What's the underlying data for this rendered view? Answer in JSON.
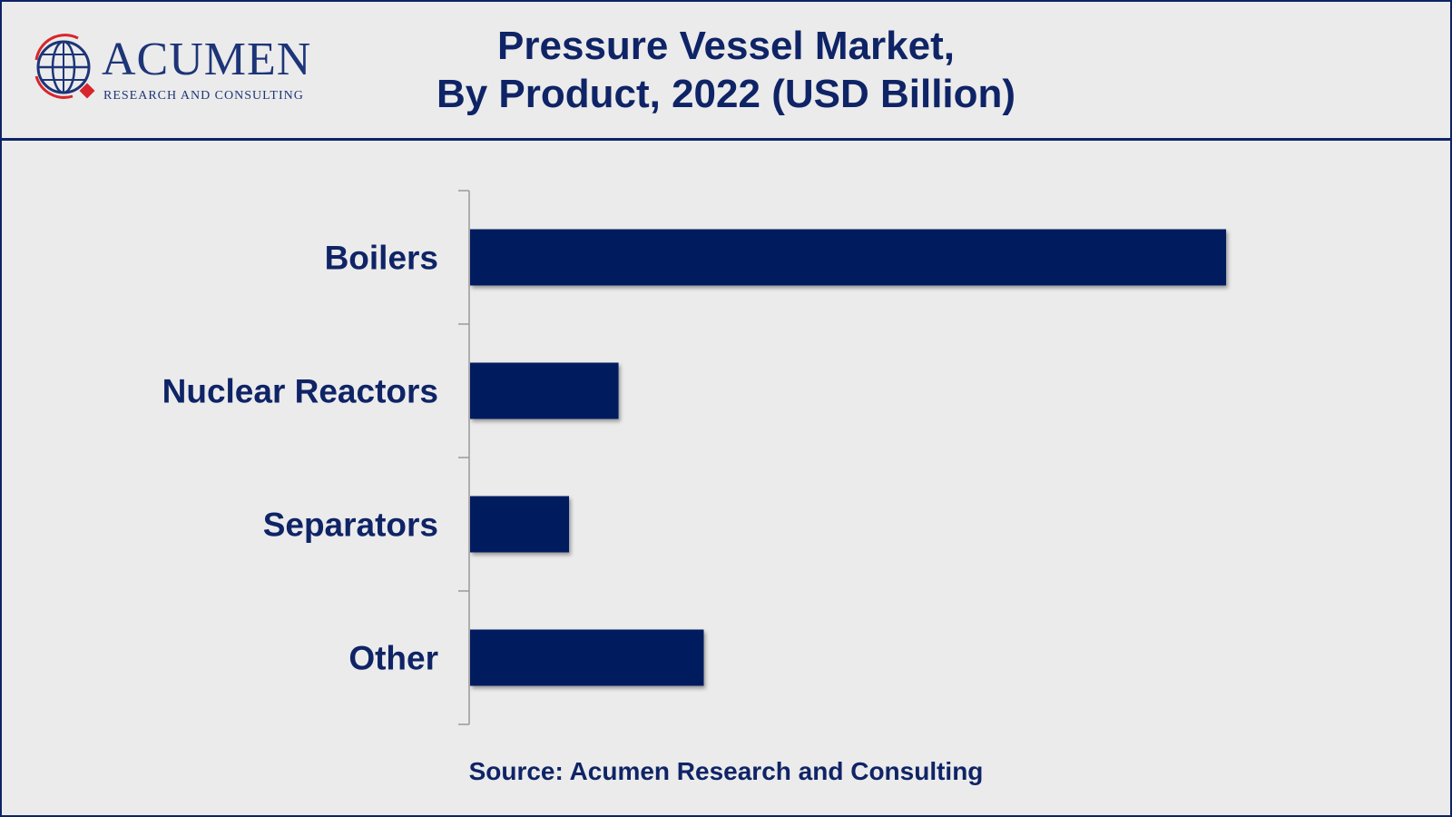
{
  "logo": {
    "wordmark": "ACUMEN",
    "tagline": "RESEARCH AND CONSULTING",
    "icon": "globe-icon"
  },
  "title_line1": "Pressure Vessel Market,",
  "title_line2": "By Product, 2022 (USD Billion)",
  "source": "Source: Acumen Research and Consulting",
  "colors": {
    "bar": "#001e5e",
    "text": "#0f2466",
    "background": "#ebebeb",
    "border": "#0f2466"
  },
  "chart_data": {
    "type": "bar",
    "orientation": "horizontal",
    "title": "Pressure Vessel Market, By Product, 2022 (USD Billion)",
    "categories": [
      "Boilers",
      "Nuclear Reactors",
      "Separators",
      "Other"
    ],
    "values": [
      27.5,
      5.4,
      3.6,
      8.5
    ],
    "xlim": [
      0,
      34
    ],
    "xaxis_visible": false,
    "grid": false,
    "legend": "none"
  }
}
